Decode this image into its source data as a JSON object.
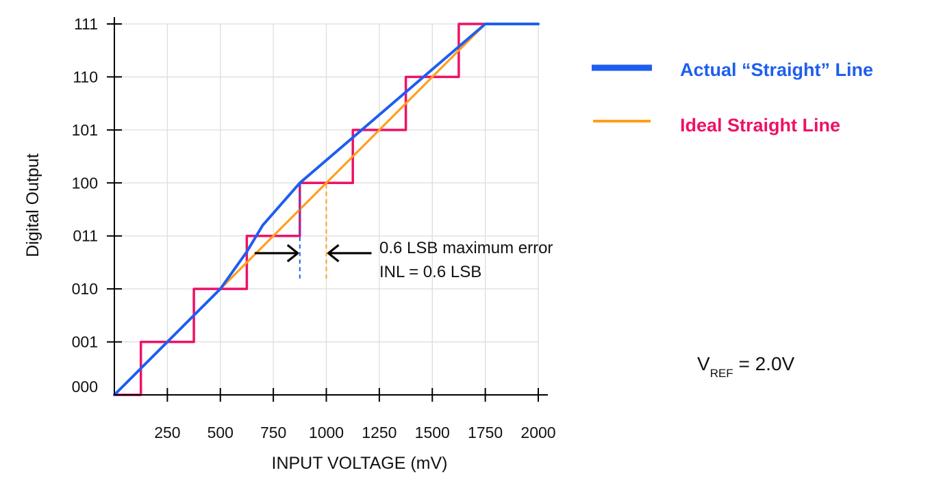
{
  "chart_data": {
    "type": "line",
    "xlabel": "INPUT VOLTAGE (mV)",
    "ylabel": "Digital Output",
    "xlim": [
      0,
      2000
    ],
    "ylim": [
      0,
      7
    ],
    "grid": true,
    "x_ticks": [
      250,
      500,
      750,
      1000,
      1250,
      1500,
      1750,
      2000
    ],
    "x_tick_labels": [
      "250",
      "500",
      "750",
      "1000",
      "1250",
      "1500",
      "1750",
      "2000"
    ],
    "y_ticks": [
      0,
      1,
      2,
      3,
      4,
      5,
      6,
      7
    ],
    "y_tick_labels": [
      "000",
      "001",
      "010",
      "011",
      "100",
      "101",
      "110",
      "111"
    ],
    "legend_position": "right",
    "series": [
      {
        "name": "Actual “Straight” Line",
        "role": "actual",
        "color": "#1E5EF0",
        "x": [
          0,
          500,
          625,
          700,
          875,
          1750,
          2000
        ],
        "y": [
          0,
          2,
          2.7,
          3.2,
          4.0,
          7.0,
          7.0
        ]
      },
      {
        "name": "Ideal Straight Line",
        "role": "ideal",
        "color": "#FF9E1B",
        "x": [
          0,
          1750,
          2000
        ],
        "y": [
          0,
          7,
          7
        ]
      },
      {
        "role": "transfer-steps",
        "color": "#EE1166",
        "x": [
          0,
          125,
          125,
          375,
          375,
          625,
          625,
          875,
          875,
          1125,
          1125,
          1375,
          1375,
          1625,
          1625,
          2000
        ],
        "y": [
          0,
          0,
          1,
          1,
          2,
          2,
          3,
          3,
          4,
          4,
          5,
          5,
          6,
          6,
          7,
          7
        ]
      }
    ],
    "annotations": {
      "line1": "0.6 LSB maximum error",
      "line2": "INL = 0.6 LSB",
      "error_x_actual": 875,
      "error_x_ideal": 1000,
      "error_y": 2.7
    },
    "vref": {
      "main": "V",
      "sub": "REF",
      "rest": " = 2.0V"
    },
    "legend_label_colors": {
      "actual": "#1E5EF0",
      "ideal": "#EE1166"
    }
  }
}
